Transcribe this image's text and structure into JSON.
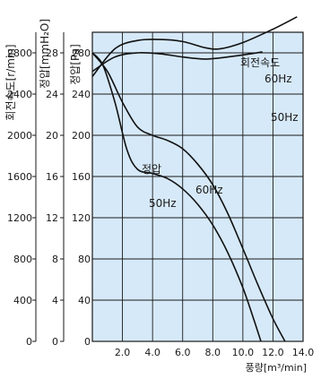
{
  "chart_data": {
    "type": "line",
    "xlabel": "풍량[m³/min]",
    "ylabel_rpm": "회전속도[r/min]",
    "ylabel_mmh2o": "정압[mmH₂O]",
    "ylabel_pa": "정압[Pa]",
    "xlim": [
      0,
      14
    ],
    "ylim_pa": [
      0,
      300
    ],
    "x_ticks": [
      2,
      4,
      6,
      8,
      10,
      12,
      14
    ],
    "x_tick_labels": [
      "2.0",
      "4.0",
      "6.0",
      "8.0",
      "10.0",
      "12.0",
      "14.0"
    ],
    "pa_ticks": [
      0,
      40,
      80,
      120,
      160,
      200,
      240,
      280
    ],
    "pa_tick_labels": [
      "0",
      "40",
      "80",
      "120",
      "160",
      "200",
      "240",
      "280"
    ],
    "mmh2o_tick_labels": [
      "0",
      "4",
      "8",
      "12",
      "16",
      "20",
      "24",
      "28"
    ],
    "rpm_tick_labels": [
      "0",
      "400",
      "800",
      "1200",
      "1600",
      "2000",
      "2400",
      "2800"
    ],
    "grid": true,
    "plot_background": "#d6e9f8",
    "annotations": {
      "speed": "회전속도",
      "pressure": "정압",
      "hz60_speed": "60Hz",
      "hz50_speed": "50Hz",
      "hz60_pressure": "60Hz",
      "hz50_pressure": "50Hz"
    },
    "series": [
      {
        "key": "speed_60",
        "points": [
          [
            0,
            257
          ],
          [
            1.5,
            284
          ],
          [
            3,
            292
          ],
          [
            4.5,
            293
          ],
          [
            6,
            291
          ],
          [
            7.5,
            285
          ],
          [
            8.5,
            284
          ],
          [
            10,
            290
          ],
          [
            12,
            303
          ],
          [
            13.6,
            315
          ]
        ]
      },
      {
        "key": "speed_50",
        "points": [
          [
            0,
            262
          ],
          [
            1.5,
            276
          ],
          [
            3,
            280
          ],
          [
            4.5,
            279
          ],
          [
            6,
            276
          ],
          [
            7.5,
            274
          ],
          [
            9,
            276
          ],
          [
            10.5,
            279
          ],
          [
            11.3,
            281
          ]
        ]
      },
      {
        "key": "pressure_60",
        "points": [
          [
            0,
            280
          ],
          [
            1,
            262
          ],
          [
            2,
            232
          ],
          [
            3,
            208
          ],
          [
            4,
            200
          ],
          [
            5,
            195
          ],
          [
            6,
            187
          ],
          [
            7,
            172
          ],
          [
            8,
            152
          ],
          [
            9,
            124
          ],
          [
            10,
            90
          ],
          [
            11,
            55
          ],
          [
            12,
            22
          ],
          [
            12.8,
            0
          ]
        ]
      },
      {
        "key": "pressure_50",
        "points": [
          [
            0,
            280
          ],
          [
            0.7,
            268
          ],
          [
            1.5,
            232
          ],
          [
            2.3,
            186
          ],
          [
            3,
            167
          ],
          [
            4,
            163
          ],
          [
            5,
            158
          ],
          [
            6,
            148
          ],
          [
            7,
            133
          ],
          [
            8,
            113
          ],
          [
            9,
            86
          ],
          [
            10,
            52
          ],
          [
            10.8,
            18
          ],
          [
            11.2,
            0
          ]
        ]
      }
    ]
  }
}
